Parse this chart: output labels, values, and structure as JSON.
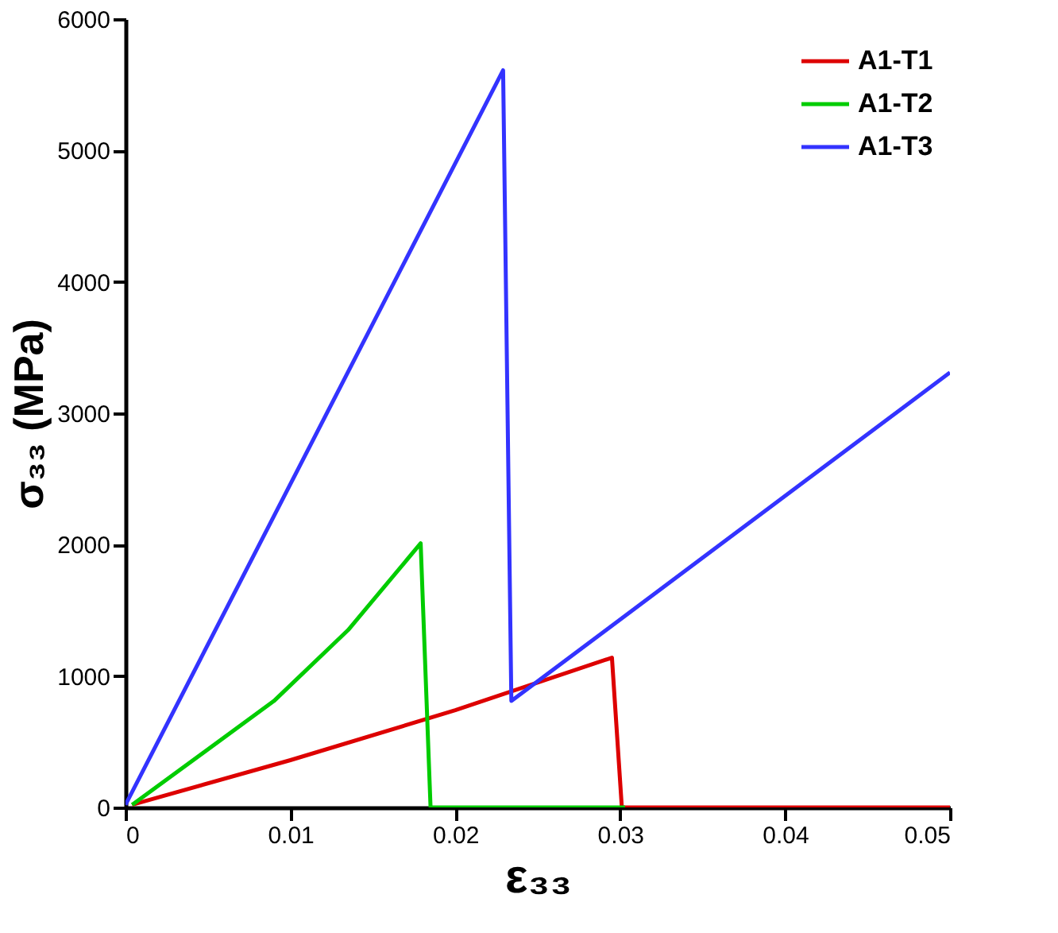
{
  "chart_data": {
    "type": "line",
    "xlabel": "ε₃₃",
    "ylabel": "σ₃₃ (MPa)",
    "xlim": [
      0,
      0.05
    ],
    "xticks": [
      0,
      0.01,
      0.02,
      0.03,
      0.04,
      0.05
    ],
    "ylim": [
      0,
      6000
    ],
    "yticks": [
      0,
      1000,
      2000,
      3000,
      4000,
      5000,
      6000
    ],
    "grid": false,
    "legend": "top right",
    "line_style": "solid",
    "marker": "none",
    "series": [
      {
        "name": "A1-T1",
        "color": "#dd0000",
        "x": [
          0.0004,
          0.01,
          0.02,
          0.0295,
          0.0301,
          0.05
        ],
        "values": [
          20,
          360,
          740,
          1140,
          0,
          0
        ]
      },
      {
        "name": "A1-T2",
        "color": "#00cc00",
        "x": [
          0.0004,
          0.009,
          0.0135,
          0.0179,
          0.0185,
          0.0303
        ],
        "values": [
          20,
          810,
          1350,
          2010,
          0,
          0
        ]
      },
      {
        "name": "A1-T3",
        "color": "#3333ff",
        "x": [
          0,
          0.0229,
          0.0234,
          0.05
        ],
        "values": [
          20,
          5610,
          810,
          3310
        ]
      }
    ]
  }
}
